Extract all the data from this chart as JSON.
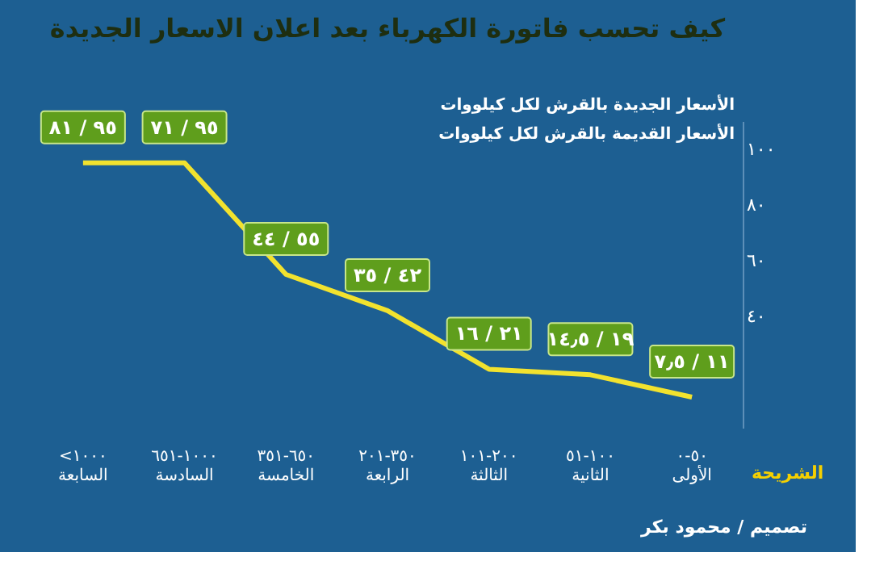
{
  "chart_data": {
    "type": "line",
    "title": "كيف تحسب فاتورة الكهرباء بعد اعلان الاسعار الجديدة",
    "xlabel": "الشريحة",
    "categories": [
      "<١٠٠٠\nالسابعة",
      "١٠٠٠-٦٥١\nالسادسة",
      "٦٥٠-٣٥١\nالخامسة",
      "٣٥٠-٢٠١\nالرابعة",
      "٢٠٠-١٠١\nالثالثة",
      "١٠٠-٥١\nالثانية",
      "٥٠-٠\nالأولى"
    ],
    "series": [
      {
        "color": "#f2e22e",
        "values": [
          95,
          95,
          55,
          42,
          21,
          19,
          11
        ]
      }
    ],
    "ylim": [
      0,
      110
    ],
    "yticks": [
      {
        "value": 40,
        "label": "٤٠"
      },
      {
        "value": 60,
        "label": "٦٠"
      },
      {
        "value": 80,
        "label": "٨٠"
      },
      {
        "value": 100,
        "label": "١٠٠"
      }
    ],
    "grid": false,
    "marker": "none",
    "line_style": "solid",
    "annotations": [
      "الأسعار الجديدة بالقرش لكل كيلووات",
      "الأسعار القديمة بالقرش لكل كيلووات",
      "تصميم / محمود بكر",
      {
        "text": "٩٥ / ٨١",
        "x": "<١٠٠٠\nالسابعة",
        "y": 95
      },
      {
        "text": "٩٥ / ٧١",
        "x": "١٠٠٠-٦٥١\nالسادسة",
        "y": 95
      },
      {
        "text": "٥٥ / ٤٤",
        "x": "٦٥٠-٣٥١\nالخامسة",
        "y": 55
      },
      {
        "text": "٤٢ / ٣٥",
        "x": "٣٥٠-٢٠١\nالرابعة",
        "y": 42
      },
      {
        "text": "٢١ / ١٦",
        "x": "٢٠٠-١٠١\nالثالثة",
        "y": 21
      },
      {
        "text": "١٩ / ١٤٫٥",
        "x": "١٠٠-٥١\nالثانية",
        "y": 19
      },
      {
        "text": "١١ / ٧٫٥",
        "x": "٥٠-٠\nالأولى",
        "y": 11
      }
    ]
  }
}
